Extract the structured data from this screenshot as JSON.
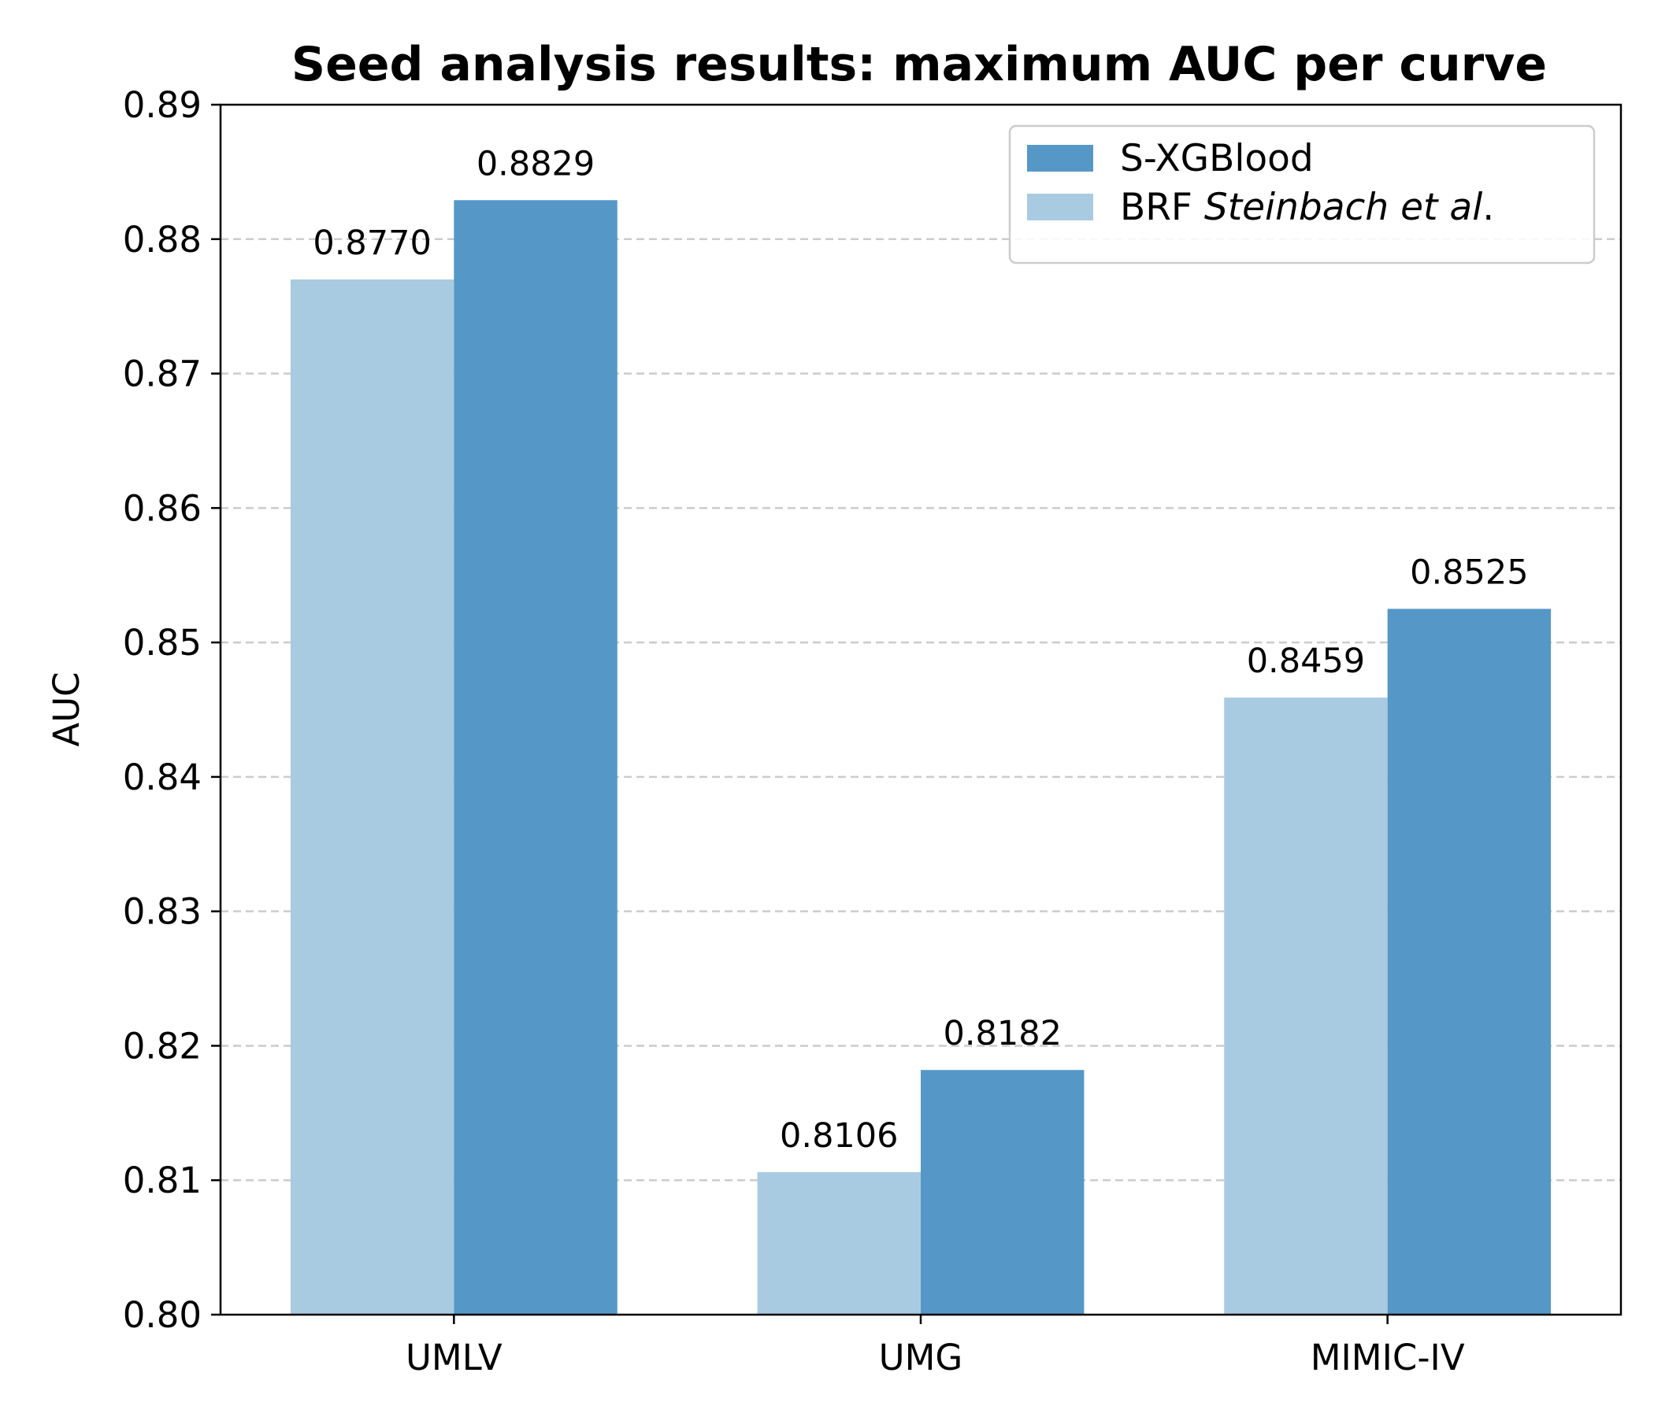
{
  "chart_data": {
    "type": "bar",
    "title": "Seed analysis results: maximum AUC per curve",
    "xlabel": "",
    "ylabel": "AUC",
    "categories": [
      "UMLV",
      "UMG",
      "MIMIC-IV"
    ],
    "ylim": [
      0.8,
      0.89
    ],
    "yticks": [
      "0.80",
      "0.81",
      "0.82",
      "0.83",
      "0.84",
      "0.85",
      "0.86",
      "0.87",
      "0.88",
      "0.89"
    ],
    "grid": "y-dashed",
    "legend_position": "top-right",
    "series": [
      {
        "name": "BRF Steinbach et al.",
        "name_plain": "BRF ",
        "name_italic": "Steinbach et al",
        "name_suffix": ".",
        "color": "#a9cbe1",
        "values": [
          0.877,
          0.8106,
          0.8459
        ],
        "labels": [
          "0.8770",
          "0.8106",
          "0.8459"
        ]
      },
      {
        "name": "S-XGBlood",
        "color": "#5598c8",
        "values": [
          0.8829,
          0.8182,
          0.8525
        ],
        "labels": [
          "0.8829",
          "0.8182",
          "0.8525"
        ]
      }
    ],
    "legend_order": [
      1,
      0
    ]
  }
}
